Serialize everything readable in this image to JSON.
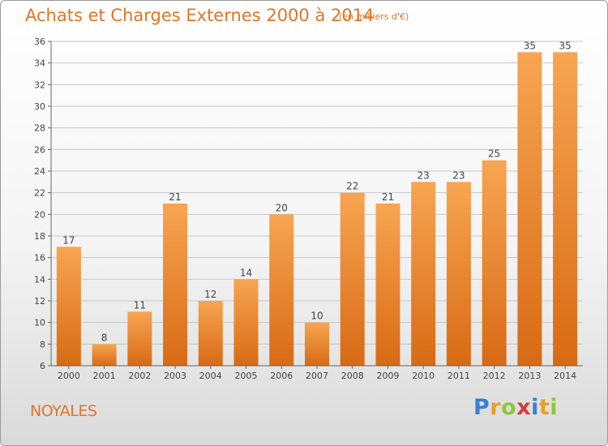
{
  "header": {
    "title": "Achats et Charges Externes 2000 à 2014",
    "subtitle": "(en milliers d'€)"
  },
  "footer": {
    "city": "NOYALES",
    "brand_letters": [
      "P",
      "r",
      "o",
      "x",
      "i",
      "t",
      "i"
    ],
    "brand_colors": [
      "#3a7fd0",
      "#e8a020",
      "#8cc83a",
      "#d83a3a",
      "#3a7fd0",
      "#e8a020",
      "#8cc83a"
    ]
  },
  "chart_data": {
    "type": "bar",
    "title": "Achats et Charges Externes 2000 à 2014",
    "subtitle": "(en milliers d'€)",
    "categories": [
      "2000",
      "2001",
      "2002",
      "2003",
      "2004",
      "2005",
      "2006",
      "2007",
      "2008",
      "2009",
      "2010",
      "2011",
      "2012",
      "2013",
      "2014"
    ],
    "values": [
      17,
      8,
      11,
      21,
      12,
      14,
      20,
      10,
      22,
      21,
      23,
      23,
      25,
      35,
      35
    ],
    "ylim": [
      6,
      36
    ],
    "yticks": [
      6,
      8,
      10,
      12,
      14,
      16,
      18,
      20,
      22,
      24,
      26,
      28,
      30,
      32,
      34,
      36
    ],
    "grid": true,
    "legend": "none",
    "bar_color": "#f08a2c"
  }
}
